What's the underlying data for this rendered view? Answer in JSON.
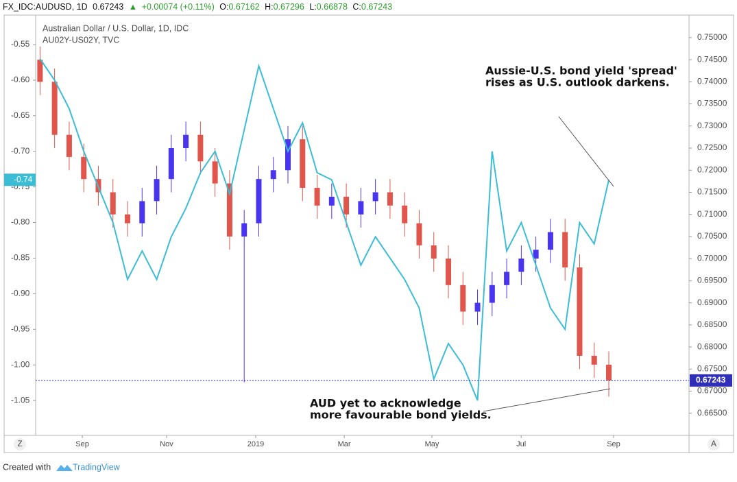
{
  "header": {
    "symbol": "FX_IDC:AUDUSD, 1D",
    "last": "0.67243",
    "change": "+0.00074 (+0.11%)",
    "ohlc": [
      {
        "label": "O:",
        "value": "0.67162"
      },
      {
        "label": "H:",
        "value": "0.67296"
      },
      {
        "label": "L:",
        "value": "0.66878"
      },
      {
        "label": "C:",
        "value": "0.67243"
      }
    ]
  },
  "chart_data": {
    "type": "candlestick",
    "series": [
      {
        "name": "Australian Dollar / U.S. Dollar, 1D, IDC",
        "axis": "y2",
        "up_color": "#4a35ee",
        "down_color": "#e0564c",
        "open": [
          0.745,
          0.74,
          0.728,
          0.723,
          0.718,
          0.715,
          0.71,
          0.708,
          0.713,
          0.718,
          0.725,
          0.728,
          0.722,
          0.717,
          0.705,
          0.708,
          0.718,
          0.72,
          0.727,
          0.716,
          0.712,
          0.714,
          0.71,
          0.713,
          0.715,
          0.712,
          0.708,
          0.703,
          0.7,
          0.694,
          0.688,
          0.69,
          0.694,
          0.697,
          0.7,
          0.702,
          0.706,
          0.698,
          0.678,
          0.676
        ],
        "high": [
          0.748,
          0.743,
          0.731,
          0.726,
          0.721,
          0.718,
          0.713,
          0.716,
          0.721,
          0.728,
          0.731,
          0.731,
          0.725,
          0.72,
          0.711,
          0.721,
          0.723,
          0.73,
          0.73,
          0.719,
          0.717,
          0.717,
          0.716,
          0.718,
          0.718,
          0.715,
          0.711,
          0.706,
          0.703,
          0.697,
          0.693,
          0.697,
          0.7,
          0.703,
          0.705,
          0.709,
          0.709,
          0.701,
          0.681,
          0.679
        ],
        "low": [
          0.737,
          0.725,
          0.72,
          0.715,
          0.712,
          0.707,
          0.705,
          0.705,
          0.71,
          0.715,
          0.722,
          0.719,
          0.714,
          0.702,
          0.672,
          0.705,
          0.715,
          0.717,
          0.713,
          0.709,
          0.709,
          0.707,
          0.707,
          0.71,
          0.709,
          0.705,
          0.7,
          0.697,
          0.691,
          0.685,
          0.685,
          0.687,
          0.691,
          0.694,
          0.697,
          0.699,
          0.695,
          0.675,
          0.673,
          0.66878
        ],
        "close": [
          0.74,
          0.728,
          0.723,
          0.718,
          0.715,
          0.71,
          0.708,
          0.713,
          0.718,
          0.725,
          0.728,
          0.722,
          0.717,
          0.705,
          0.708,
          0.718,
          0.72,
          0.727,
          0.716,
          0.712,
          0.714,
          0.71,
          0.713,
          0.715,
          0.712,
          0.708,
          0.703,
          0.7,
          0.694,
          0.688,
          0.69,
          0.694,
          0.697,
          0.7,
          0.702,
          0.706,
          0.698,
          0.678,
          0.676,
          0.67243
        ]
      },
      {
        "name": "AU02Y-US02Y, TVC",
        "type": "line",
        "axis": "y",
        "color": "#3bbdd6",
        "values": [
          -0.57,
          -0.6,
          -0.64,
          -0.7,
          -0.75,
          -0.8,
          -0.88,
          -0.84,
          -0.88,
          -0.82,
          -0.78,
          -0.73,
          -0.7,
          -0.76,
          -0.67,
          -0.58,
          -0.64,
          -0.7,
          -0.66,
          -0.73,
          -0.74,
          -0.8,
          -0.86,
          -0.82,
          -0.85,
          -0.88,
          -0.92,
          -1.02,
          -0.97,
          -1.0,
          -1.05,
          -0.7,
          -0.84,
          -0.8,
          -0.86,
          -0.92,
          -0.95,
          -0.8,
          -0.83,
          -0.74
        ]
      }
    ],
    "xlim": [
      -0.3,
      44.5
    ],
    "xticks": [
      {
        "value": 2.9,
        "label": "Sep"
      },
      {
        "value": 8.68,
        "label": "Nov"
      },
      {
        "value": 14.79,
        "label": "2019"
      },
      {
        "value": 20.86,
        "label": "Mar"
      },
      {
        "value": 26.87,
        "label": "May"
      },
      {
        "value": 32.99,
        "label": "Jul"
      },
      {
        "value": 39.33,
        "label": "Sep"
      }
    ],
    "ylim": [
      -1.099,
      -0.5086
    ],
    "yticks": [
      -0.55,
      {
        "value": -0.6,
        "label": "-0.60"
      },
      -0.65,
      {
        "value": -0.7,
        "label": "-0.70"
      },
      -0.75,
      {
        "value": -0.8,
        "label": "-0.80"
      },
      -0.85,
      {
        "value": -0.9,
        "label": "-0.90"
      },
      -0.95,
      {
        "value": -1.0,
        "label": "-1.00"
      },
      -1.05
    ],
    "y2lim": [
      0.66,
      0.7551
    ],
    "y2ticks": [
      {
        "value": 0.665,
        "label": "0.66500"
      },
      {
        "value": 0.67,
        "label": "0.67000"
      },
      {
        "value": 0.675,
        "label": "0.67500"
      },
      {
        "value": 0.68,
        "label": "0.68000"
      },
      {
        "value": 0.685,
        "label": "0.68500"
      },
      {
        "value": 0.69,
        "label": "0.69000"
      },
      {
        "value": 0.695,
        "label": "0.69500"
      },
      {
        "value": 0.7,
        "label": "0.70000"
      },
      {
        "value": 0.705,
        "label": "0.70500"
      },
      {
        "value": 0.71,
        "label": "0.71000"
      },
      {
        "value": 0.715,
        "label": "0.71500"
      },
      {
        "value": 0.72,
        "label": "0.72000"
      },
      {
        "value": 0.725,
        "label": "0.72500"
      },
      {
        "value": 0.73,
        "label": "0.73000"
      },
      {
        "value": 0.735,
        "label": "0.73500"
      },
      {
        "value": 0.74,
        "label": "0.74000"
      },
      {
        "value": 0.745,
        "label": "0.74500"
      },
      {
        "value": 0.75,
        "label": "0.75000"
      }
    ],
    "last_price": {
      "value": 0.67243,
      "label": "0.67243"
    },
    "last_spread": {
      "value": -0.74,
      "label": "-0.74"
    },
    "annotations": [
      "Aussie-U.S. bond yield 'spread'",
      "rises as U.S. outlook darkens.",
      "AUD yet to acknowledge",
      "more favourable bond yields."
    ]
  },
  "buttons": {
    "left": "Z",
    "right": "A"
  },
  "footer": {
    "created": "Created with",
    "brand": "TradingView"
  }
}
